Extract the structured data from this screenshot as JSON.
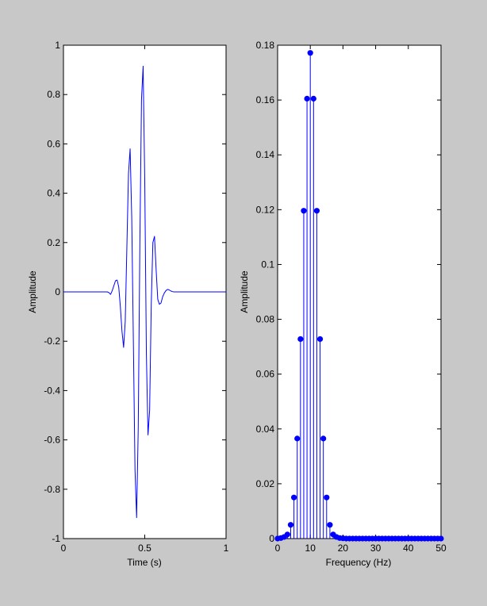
{
  "figure": {
    "background": "#c8c8c8",
    "axes_background": "#ffffff",
    "line_color": "#0000ff"
  },
  "chart_data": [
    {
      "type": "line",
      "xlabel": "Time (s)",
      "ylabel": "Amplitude",
      "xlim": [
        0,
        1
      ],
      "ylim": [
        -1,
        1
      ],
      "xticks": [
        "0",
        "0.5",
        "1"
      ],
      "yticks": [
        "-1",
        "-0.8",
        "-0.6",
        "-0.4",
        "-0.2",
        "0",
        "0.2",
        "0.4",
        "0.6",
        "0.8",
        "1"
      ],
      "grid": false,
      "legend": false,
      "series": [
        {
          "x": [
            0,
            0.02,
            0.04,
            0.06,
            0.08,
            0.1,
            0.12,
            0.14,
            0.16,
            0.18,
            0.2,
            0.22,
            0.24,
            0.26,
            0.27,
            0.28,
            0.29,
            0.3,
            0.31,
            0.32,
            0.33,
            0.34,
            0.35,
            0.36,
            0.37,
            0.38,
            0.39,
            0.4,
            0.41,
            0.42,
            0.43,
            0.44,
            0.45,
            0.46,
            0.47,
            0.48,
            0.49,
            0.5,
            0.51,
            0.52,
            0.53,
            0.54,
            0.55,
            0.56,
            0.57,
            0.58,
            0.59,
            0.6,
            0.61,
            0.62,
            0.63,
            0.64,
            0.65,
            0.66,
            0.67,
            0.68,
            0.69,
            0.7,
            0.71,
            0.72,
            0.73,
            0.74,
            0.76,
            0.78,
            0.8,
            0.82,
            0.84,
            0.86,
            0.88,
            0.9,
            0.92,
            0.94,
            0.96,
            0.98,
            1
          ],
          "y": [
            0,
            0,
            0,
            0,
            0,
            0,
            0,
            0,
            0,
            0,
            0,
            0,
            0,
            0,
            0,
            -0.003,
            -0.01,
            0.005,
            0.025,
            0.045,
            0.048,
            0.02,
            -0.06,
            -0.16,
            -0.225,
            -0.12,
            0.18,
            0.48,
            0.58,
            0.3,
            -0.2,
            -0.72,
            -0.915,
            -0.55,
            0.2,
            0.78,
            0.915,
            0.45,
            -0.25,
            -0.58,
            -0.48,
            -0.05,
            0.2,
            0.225,
            0.09,
            -0.03,
            -0.05,
            -0.045,
            -0.02,
            -0.005,
            0.005,
            0.01,
            0.008,
            0.004,
            0.001,
            0,
            0,
            0,
            0,
            0,
            0,
            0,
            0,
            0,
            0,
            0,
            0,
            0,
            0,
            0,
            0,
            0,
            0,
            0,
            0
          ]
        }
      ]
    },
    {
      "type": "stem",
      "xlabel": "Frequency (Hz)",
      "ylabel": "Amplitude",
      "xlim": [
        0,
        50
      ],
      "ylim": [
        0,
        0.18
      ],
      "xticks": [
        "0",
        "10",
        "20",
        "30",
        "40",
        "50"
      ],
      "yticks": [
        "0",
        "0.02",
        "0.04",
        "0.06",
        "0.08",
        "0.1",
        "0.12",
        "0.14",
        "0.16",
        "0.18"
      ],
      "grid": false,
      "legend": false,
      "series": [
        {
          "x": [
            0,
            1,
            2,
            3,
            4,
            5,
            6,
            7,
            8,
            9,
            10,
            11,
            12,
            13,
            14,
            15,
            16,
            17,
            18,
            19,
            20,
            21,
            22,
            23,
            24,
            25,
            26,
            27,
            28,
            29,
            30,
            31,
            32,
            33,
            34,
            35,
            36,
            37,
            38,
            39,
            40,
            41,
            42,
            43,
            44,
            45,
            46,
            47,
            48,
            49,
            50
          ],
          "y": [
            0,
            0.0002,
            0.0006,
            0.0015,
            0.005,
            0.015,
            0.0365,
            0.0728,
            0.1196,
            0.1605,
            0.1772,
            0.1605,
            0.1196,
            0.0728,
            0.0365,
            0.015,
            0.005,
            0.0015,
            0.0006,
            0.0002,
            0.0001,
            0,
            0,
            0,
            0,
            0,
            0,
            0,
            0,
            0,
            0,
            0,
            0,
            0,
            0,
            0,
            0,
            0,
            0,
            0,
            0,
            0,
            0,
            0,
            0,
            0,
            0,
            0,
            0,
            0,
            0
          ]
        }
      ]
    }
  ]
}
